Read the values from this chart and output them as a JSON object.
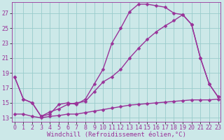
{
  "background_color": "#cce8e8",
  "grid_color": "#99cccc",
  "line_color": "#993399",
  "marker": "D",
  "marker_size": 2.5,
  "line_width": 1.0,
  "xlabel": "Windchill (Refroidissement éolien,°C)",
  "xlabel_fontsize": 6.5,
  "tick_fontsize": 6.0,
  "ylim": [
    12.5,
    28.5
  ],
  "xlim": [
    -0.3,
    23.3
  ],
  "yticks": [
    13,
    15,
    17,
    19,
    21,
    23,
    25,
    27
  ],
  "xticks": [
    0,
    1,
    2,
    3,
    4,
    5,
    6,
    7,
    8,
    9,
    10,
    11,
    12,
    13,
    14,
    15,
    16,
    17,
    18,
    19,
    20,
    21,
    22,
    23
  ],
  "series": [
    {
      "x": [
        0,
        1,
        2,
        3,
        4,
        5,
        6,
        7,
        8,
        9,
        10,
        11,
        12,
        13,
        14,
        15,
        16,
        17,
        18,
        19,
        20,
        21,
        22,
        23
      ],
      "y": [
        18.5,
        15.5,
        15.0,
        13.2,
        13.5,
        14.8,
        15.0,
        14.8,
        15.5,
        17.5,
        19.5,
        23.0,
        25.0,
        27.2,
        28.2,
        28.2,
        28.0,
        27.8,
        27.0,
        26.8,
        25.5,
        21.0,
        17.5,
        15.8
      ]
    },
    {
      "x": [
        0,
        1,
        2,
        3,
        4,
        5,
        6,
        7,
        8,
        9,
        10,
        11,
        12,
        13,
        14,
        15,
        16,
        17,
        18,
        19,
        20,
        21,
        22,
        23
      ],
      "y": [
        18.5,
        15.5,
        15.0,
        13.2,
        13.8,
        14.2,
        14.8,
        15.0,
        15.2,
        16.5,
        17.8,
        18.5,
        19.5,
        21.0,
        22.3,
        23.5,
        24.5,
        25.3,
        26.0,
        26.8,
        25.5,
        21.0,
        17.5,
        15.8
      ]
    },
    {
      "x": [
        0,
        1,
        2,
        3,
        4,
        5,
        6,
        7,
        8,
        9,
        10,
        11,
        12,
        13,
        14,
        15,
        16,
        17,
        18,
        19,
        20,
        21,
        22,
        23
      ],
      "y": [
        13.5,
        13.5,
        13.2,
        13.0,
        13.2,
        13.3,
        13.5,
        13.5,
        13.7,
        13.9,
        14.1,
        14.3,
        14.5,
        14.7,
        14.8,
        14.9,
        15.0,
        15.1,
        15.2,
        15.3,
        15.4,
        15.4,
        15.4,
        15.5
      ]
    }
  ]
}
